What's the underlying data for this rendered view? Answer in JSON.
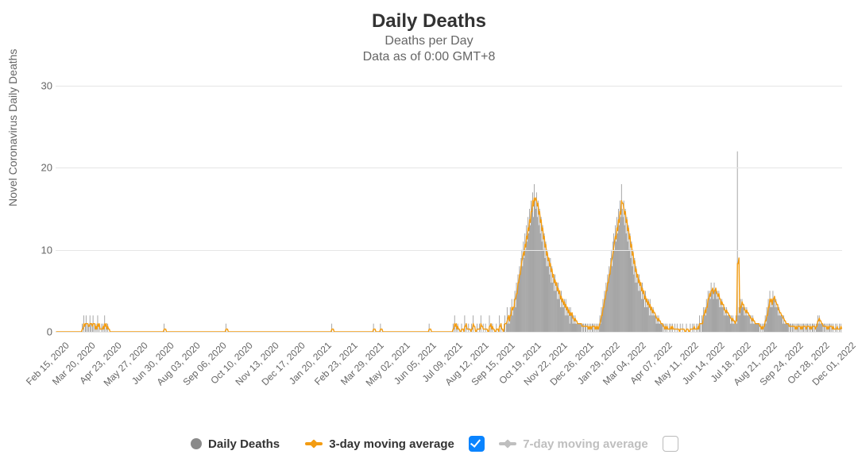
{
  "chart": {
    "type": "bar+line",
    "title": "Daily Deaths",
    "subtitle": "Deaths per Day",
    "note": "Data as of 0:00 GMT+8",
    "y_axis_label": "Novel Coronavirus Daily Deaths",
    "title_fontsize": 24,
    "subtitle_fontsize": 16,
    "label_fontsize": 14,
    "tick_fontsize": 13,
    "background_color": "#ffffff",
    "grid_color": "#e6e6e6",
    "text_color": "#333333",
    "muted_text_color": "#666666",
    "ylim": [
      0,
      30
    ],
    "ytick_step": 10,
    "bar_color": "#8a8a8a",
    "bar_opacity": 0.85,
    "line3_color": "#f39c12",
    "line3_width": 1.4,
    "line7_color": "#bfbfbf",
    "line7_width": 1.4,
    "checkbox_checked_color": "#0a84ff",
    "x_tick_labels": [
      "Feb 15, 2020",
      "Mar 20, 2020",
      "Apr 23, 2020",
      "May 27, 2020",
      "Jun 30, 2020",
      "Aug 03, 2020",
      "Sep 06, 2020",
      "Oct 10, 2020",
      "Nov 13, 2020",
      "Dec 17, 2020",
      "Jan 20, 2021",
      "Feb 23, 2021",
      "Mar 29, 2021",
      "May 02, 2021",
      "Jun 05, 2021",
      "Jul 09, 2021",
      "Aug 12, 2021",
      "Sep 15, 2021",
      "Oct 19, 2021",
      "Nov 22, 2021",
      "Dec 26, 2021",
      "Jan 29, 2022",
      "Mar 04, 2022",
      "Apr 07, 2022",
      "May 11, 2022",
      "Jun 14, 2022",
      "Jul 18, 2022",
      "Aug 21, 2022",
      "Sep 24, 2022",
      "Oct 28, 2022",
      "Dec 01, 2022"
    ],
    "series": {
      "daily_deaths_label": "Daily Deaths",
      "ma3_label": "3-day moving average",
      "ma7_label": "7-day moving average",
      "ma3_checked": true,
      "ma7_checked": false
    },
    "values": [
      0,
      0,
      0,
      0,
      0,
      0,
      0,
      0,
      0,
      0,
      0,
      0,
      0,
      0,
      0,
      0,
      0,
      0,
      0,
      0,
      0,
      0,
      0,
      0,
      0,
      0,
      0,
      0,
      0,
      0,
      0,
      0,
      0,
      0,
      1,
      0,
      2,
      0,
      1,
      2,
      0,
      1,
      1,
      0,
      2,
      1,
      0,
      1,
      2,
      0,
      1,
      0,
      1,
      0,
      2,
      0,
      1,
      0,
      0,
      1,
      0,
      1,
      0,
      2,
      0,
      1,
      0,
      1,
      0,
      0,
      0,
      0,
      0,
      0,
      0,
      0,
      0,
      0,
      0,
      0,
      0,
      0,
      0,
      0,
      0,
      0,
      0,
      0,
      0,
      0,
      0,
      0,
      0,
      0,
      0,
      0,
      0,
      0,
      0,
      0,
      0,
      0,
      0,
      0,
      0,
      0,
      0,
      0,
      0,
      0,
      0,
      0,
      0,
      0,
      0,
      0,
      0,
      0,
      0,
      0,
      0,
      0,
      0,
      0,
      0,
      0,
      0,
      0,
      0,
      0,
      0,
      0,
      0,
      0,
      0,
      0,
      0,
      0,
      0,
      0,
      1,
      0,
      0,
      0,
      0,
      0,
      0,
      0,
      0,
      0,
      0,
      0,
      0,
      0,
      0,
      0,
      0,
      0,
      0,
      0,
      0,
      0,
      0,
      0,
      0,
      0,
      0,
      0,
      0,
      0,
      0,
      0,
      0,
      0,
      0,
      0,
      0,
      0,
      0,
      0,
      0,
      0,
      0,
      0,
      0,
      0,
      0,
      0,
      0,
      0,
      0,
      0,
      0,
      0,
      0,
      0,
      0,
      0,
      0,
      0,
      0,
      0,
      0,
      0,
      0,
      0,
      0,
      0,
      0,
      0,
      0,
      0,
      0,
      0,
      0,
      0,
      0,
      0,
      0,
      0,
      1,
      0,
      0,
      0,
      0,
      0,
      0,
      0,
      0,
      0,
      0,
      0,
      0,
      0,
      0,
      0,
      0,
      0,
      0,
      0,
      0,
      0,
      0,
      0,
      0,
      0,
      0,
      0,
      0,
      0,
      0,
      0,
      0,
      0,
      0,
      0,
      0,
      0,
      0,
      0,
      0,
      0,
      0,
      0,
      0,
      0,
      0,
      0,
      0,
      0,
      0,
      0,
      0,
      0,
      0,
      0,
      0,
      0,
      0,
      0,
      0,
      0,
      0,
      0,
      0,
      0,
      0,
      0,
      0,
      0,
      0,
      0,
      0,
      0,
      0,
      0,
      0,
      0,
      0,
      0,
      0,
      0,
      0,
      0,
      0,
      0,
      0,
      0,
      0,
      0,
      0,
      0,
      0,
      0,
      0,
      0,
      0,
      0,
      0,
      0,
      0,
      0,
      0,
      0,
      0,
      0,
      0,
      0,
      0,
      0,
      0,
      0,
      0,
      0,
      0,
      0,
      0,
      0,
      0,
      0,
      0,
      0,
      0,
      0,
      0,
      0,
      0,
      0,
      0,
      0,
      0,
      0,
      0,
      0,
      0,
      0,
      0,
      1,
      0,
      0,
      0,
      0,
      0,
      0,
      0,
      0,
      0,
      0,
      0,
      0,
      0,
      0,
      0,
      0,
      0,
      0,
      0,
      0,
      0,
      0,
      0,
      0,
      0,
      0,
      0,
      0,
      0,
      0,
      0,
      0,
      0,
      0,
      0,
      0,
      0,
      0,
      0,
      0,
      0,
      0,
      0,
      0,
      0,
      0,
      0,
      0,
      0,
      0,
      0,
      0,
      0,
      1,
      0,
      0,
      0,
      0,
      0,
      0,
      0,
      0,
      1,
      0,
      0,
      0,
      0,
      0,
      0,
      0,
      0,
      0,
      0,
      0,
      0,
      0,
      0,
      0,
      0,
      0,
      0,
      0,
      0,
      0,
      0,
      0,
      0,
      0,
      0,
      0,
      0,
      0,
      0,
      0,
      0,
      0,
      0,
      0,
      0,
      0,
      0,
      0,
      0,
      0,
      0,
      0,
      0,
      0,
      0,
      0,
      0,
      0,
      0,
      0,
      0,
      0,
      0,
      0,
      0,
      0,
      0,
      0,
      0,
      0,
      0,
      1,
      0,
      0,
      0,
      0,
      0,
      0,
      0,
      0,
      0,
      0,
      0,
      0,
      0,
      0,
      0,
      0,
      0,
      0,
      0,
      0,
      0,
      0,
      0,
      0,
      0,
      0,
      0,
      0,
      0,
      0,
      1,
      0,
      2,
      0,
      1,
      0,
      1,
      0,
      0,
      0,
      0,
      1,
      0,
      0,
      0,
      2,
      0,
      1,
      0,
      0,
      1,
      0,
      0,
      0,
      1,
      0,
      2,
      0,
      0,
      0,
      0,
      1,
      0,
      0,
      1,
      0,
      2,
      0,
      0,
      1,
      0,
      0,
      1,
      0,
      0,
      0,
      0,
      2,
      0,
      1,
      0,
      1,
      0,
      0,
      0,
      0,
      1,
      0,
      0,
      0,
      2,
      0,
      1,
      0,
      0,
      0,
      1,
      2,
      0,
      1,
      3,
      1,
      2,
      1,
      3,
      2,
      4,
      2,
      3,
      4,
      5,
      3,
      6,
      5,
      7,
      6,
      8,
      7,
      9,
      10,
      8,
      11,
      9,
      12,
      10,
      13,
      11,
      14,
      12,
      15,
      13,
      16,
      15,
      17,
      14,
      18,
      16,
      15,
      17,
      14,
      16,
      13,
      15,
      12,
      14,
      11,
      13,
      10,
      12,
      9,
      11,
      8,
      10,
      8,
      9,
      7,
      9,
      6,
      8,
      6,
      7,
      5,
      7,
      5,
      6,
      4,
      6,
      4,
      5,
      3,
      5,
      3,
      4,
      3,
      4,
      2,
      4,
      2,
      3,
      2,
      3,
      1,
      3,
      2,
      2,
      1,
      2,
      1,
      2,
      1,
      1,
      1,
      1,
      1,
      1,
      1,
      1,
      0,
      1,
      1,
      0,
      1,
      1,
      0,
      1,
      0,
      1,
      0,
      1,
      0,
      1,
      1,
      0,
      1,
      0,
      1,
      0,
      1,
      0,
      1,
      2,
      1,
      3,
      2,
      4,
      3,
      5,
      4,
      6,
      5,
      7,
      6,
      8,
      7,
      9,
      10,
      8,
      11,
      12,
      10,
      13,
      11,
      14,
      12,
      15,
      13,
      16,
      14,
      18,
      15,
      14,
      16,
      13,
      15,
      12,
      14,
      11,
      13,
      10,
      12,
      9,
      11,
      8,
      10,
      7,
      9,
      6,
      8,
      6,
      7,
      5,
      7,
      5,
      6,
      4,
      6,
      4,
      5,
      3,
      5,
      3,
      4,
      3,
      4,
      2,
      4,
      2,
      3,
      2,
      3,
      2,
      2,
      2,
      1,
      2,
      1,
      2,
      1,
      1,
      1,
      1,
      1,
      0,
      1,
      0,
      1,
      0,
      1,
      0,
      0,
      1,
      0,
      1,
      0,
      1,
      0,
      0,
      1,
      0,
      0,
      1,
      0,
      0,
      0,
      1,
      0,
      0,
      1,
      0,
      0,
      0,
      0,
      1,
      0,
      0,
      0,
      0,
      1,
      0,
      0,
      1,
      0,
      1,
      0,
      0,
      1,
      0,
      1,
      0,
      2,
      1,
      0,
      2,
      1,
      3,
      2,
      3,
      2,
      4,
      3,
      5,
      4,
      5,
      4,
      6,
      5,
      5,
      4,
      6,
      5,
      5,
      4,
      5,
      4,
      5,
      3,
      4,
      3,
      4,
      3,
      3,
      2,
      3,
      2,
      3,
      2,
      2,
      2,
      2,
      1,
      2,
      1,
      2,
      1,
      1,
      1,
      2,
      1,
      22,
      2,
      3,
      2,
      4,
      3,
      4,
      3,
      3,
      2,
      3,
      2,
      3,
      2,
      2,
      2,
      2,
      1,
      2,
      1,
      2,
      1,
      1,
      1,
      1,
      1,
      1,
      1,
      1,
      0,
      1,
      0,
      1,
      0,
      1,
      1,
      2,
      1,
      3,
      2,
      4,
      3,
      5,
      3,
      4,
      3,
      5,
      4,
      4,
      3,
      4,
      3,
      3,
      2,
      3,
      2,
      2,
      2,
      2,
      1,
      2,
      1,
      1,
      1,
      1,
      1,
      1,
      0,
      1,
      1,
      0,
      1,
      1,
      0,
      1,
      0,
      1,
      0,
      1,
      1,
      0,
      1,
      0,
      1,
      0,
      1,
      1,
      0,
      1,
      0,
      1,
      1,
      0,
      1,
      0,
      1,
      0,
      1,
      1,
      0,
      1,
      0,
      1,
      1,
      2,
      1,
      2,
      1,
      1,
      1,
      1,
      0,
      1,
      1,
      0,
      1,
      0,
      1,
      0,
      1,
      1,
      0,
      1,
      0,
      1,
      0,
      0,
      1,
      0,
      1,
      0,
      0,
      1,
      0,
      1,
      0
    ]
  }
}
